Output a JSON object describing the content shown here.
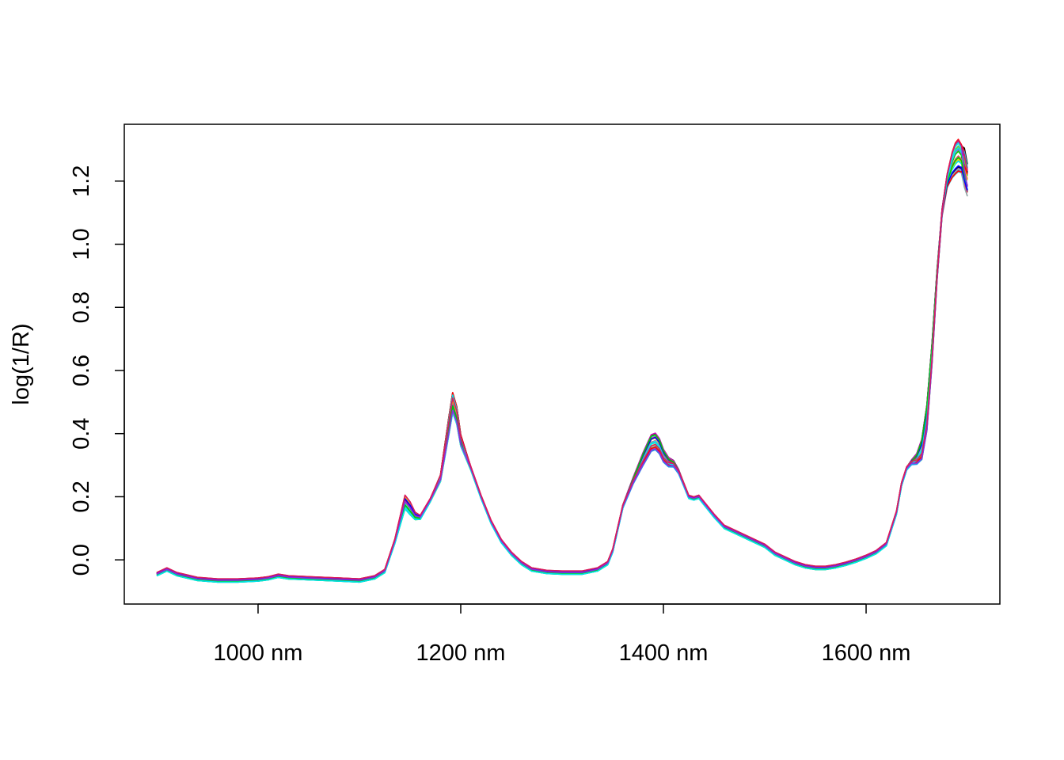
{
  "chart_data": {
    "type": "line",
    "title": "",
    "xlabel": "",
    "ylabel": "log(1/R)",
    "xlim": [
      868,
      1732
    ],
    "ylim": [
      -0.14,
      1.38
    ],
    "x_unit": "nm",
    "x_ticks": [
      1000,
      1200,
      1400,
      1600
    ],
    "x_tick_labels": [
      "1000 nm",
      "1200 nm",
      "1400 nm",
      "1600 nm"
    ],
    "y_ticks": [
      0.0,
      0.2,
      0.4,
      0.6,
      0.8,
      1.0,
      1.2
    ],
    "y_tick_labels": [
      "0.0",
      "0.2",
      "0.4",
      "0.6",
      "0.8",
      "1.0",
      "1.2"
    ],
    "grid": false,
    "legend": "none",
    "series_colors": [
      "#000000",
      "#DF536B",
      "#61D04F",
      "#2297E6",
      "#28E2E5",
      "#CD0BBC",
      "#F5C710",
      "#9E9E9E",
      "#FF0000",
      "#0000FF",
      "#00CC00",
      "#00E5EE",
      "#8A2BE2",
      "#D81B60"
    ],
    "base_spectrum": {
      "x": [
        900,
        910,
        920,
        940,
        960,
        980,
        1000,
        1010,
        1020,
        1030,
        1050,
        1080,
        1100,
        1115,
        1125,
        1135,
        1145,
        1150,
        1155,
        1160,
        1170,
        1180,
        1188,
        1192,
        1196,
        1200,
        1210,
        1220,
        1230,
        1240,
        1250,
        1260,
        1270,
        1285,
        1300,
        1320,
        1335,
        1345,
        1350,
        1360,
        1370,
        1380,
        1388,
        1392,
        1396,
        1400,
        1405,
        1410,
        1415,
        1420,
        1425,
        1430,
        1435,
        1440,
        1450,
        1460,
        1470,
        1480,
        1490,
        1500,
        1510,
        1520,
        1530,
        1540,
        1550,
        1560,
        1570,
        1580,
        1590,
        1600,
        1610,
        1620,
        1630,
        1635,
        1640,
        1645,
        1650,
        1655,
        1660,
        1665,
        1670,
        1675,
        1680,
        1685,
        1688,
        1691,
        1694,
        1697,
        1700
      ],
      "y": [
        -0.045,
        -0.03,
        -0.045,
        -0.06,
        -0.065,
        -0.065,
        -0.062,
        -0.058,
        -0.05,
        -0.055,
        -0.058,
        -0.062,
        -0.065,
        -0.055,
        -0.035,
        0.06,
        0.185,
        0.165,
        0.14,
        0.135,
        0.19,
        0.26,
        0.42,
        0.5,
        0.46,
        0.38,
        0.29,
        0.2,
        0.12,
        0.06,
        0.02,
        -0.01,
        -0.03,
        -0.038,
        -0.04,
        -0.04,
        -0.03,
        -0.01,
        0.03,
        0.17,
        0.25,
        0.32,
        0.37,
        0.375,
        0.36,
        0.33,
        0.31,
        0.305,
        0.28,
        0.24,
        0.2,
        0.195,
        0.2,
        0.18,
        0.14,
        0.105,
        0.09,
        0.075,
        0.06,
        0.045,
        0.02,
        0.005,
        -0.01,
        -0.02,
        -0.025,
        -0.025,
        -0.02,
        -0.012,
        -0.002,
        0.01,
        0.025,
        0.05,
        0.15,
        0.24,
        0.29,
        0.31,
        0.32,
        0.35,
        0.45,
        0.65,
        0.9,
        1.1,
        1.2,
        1.25,
        1.27,
        1.28,
        1.27,
        1.24,
        1.2
      ]
    },
    "series_count": 28
  }
}
